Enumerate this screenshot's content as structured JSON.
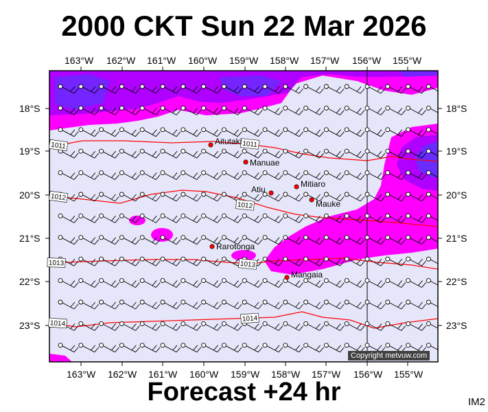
{
  "title": "2000 CKT Sun 22 Mar 2026",
  "footer": "Forecast +24 hr",
  "image_code": "IM2",
  "copyright": "Copyright metvuw.com",
  "colors": {
    "ocean": "#e6e6fa",
    "magenta": "#ff00ff",
    "purple": "#b000ff",
    "deep_blue": "#6a2bff",
    "isobar": "#ff0000",
    "place_dot": "#ff0000"
  },
  "axes": {
    "lon_labels": [
      "163°W",
      "162°W",
      "161°W",
      "160°W",
      "159°W",
      "158°W",
      "157°W",
      "156°W",
      "155°W"
    ],
    "lat_labels": [
      "18°S",
      "19°S",
      "20°S",
      "21°S",
      "22°S",
      "23°S"
    ]
  },
  "places": [
    {
      "name": "Aitutaki"
    },
    {
      "name": "Manuae"
    },
    {
      "name": "Atiu"
    },
    {
      "name": "Mitiaro"
    },
    {
      "name": "Mauke"
    },
    {
      "name": "Rarotonga"
    },
    {
      "name": "Mangaia"
    }
  ],
  "isobars": [
    {
      "label": "1011"
    },
    {
      "label": "1012"
    },
    {
      "label": "1013"
    },
    {
      "label": "1014"
    }
  ],
  "wind_barbs": {
    "rows": 13,
    "cols": 19
  }
}
